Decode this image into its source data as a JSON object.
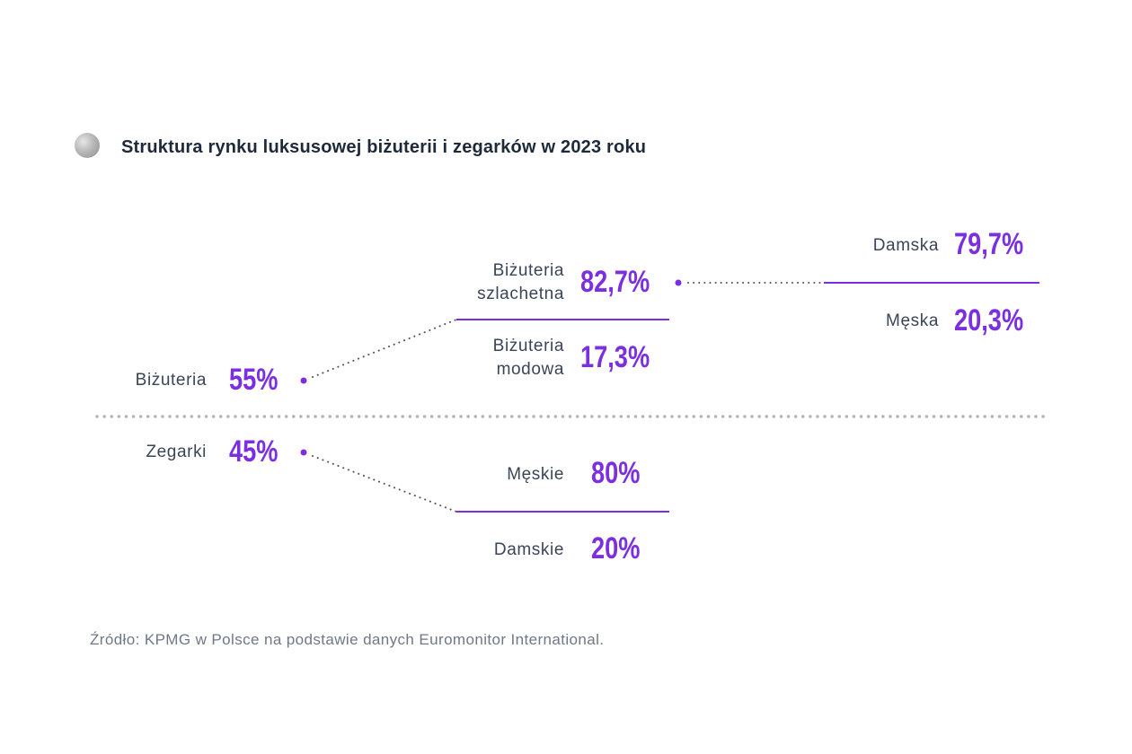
{
  "title": "Struktura rynku luksusowej biżuterii i zegarków w 2023 roku",
  "source": "Źródło: KPMG w Polsce na podstawie danych Euromonitor International.",
  "colors": {
    "accent": "#7b2fe0",
    "text": "#3a4557",
    "title": "#1e2a3a",
    "dots": "#555555"
  },
  "chart_data": {
    "type": "tree",
    "title": "Struktura rynku luksusowej biżuterii i zegarków w 2023 roku",
    "biz": {
      "label": "Biżuteria",
      "value": "55%"
    },
    "zeg": {
      "label": "Zegarki",
      "value": "45%"
    },
    "szl": {
      "label1": "Biżuteria",
      "label2": "szlachetna",
      "value": "82,7%"
    },
    "mod": {
      "label1": "Biżuteria",
      "label2": "modowa",
      "value": "17,3%"
    },
    "damska": {
      "label": "Damska",
      "value": "79,7%"
    },
    "meska": {
      "label": "Męska",
      "value": "20,3%"
    },
    "meskie": {
      "label": "Męskie",
      "value": "80%"
    },
    "damskie": {
      "label": "Damskie",
      "value": "20%"
    },
    "numeric": {
      "Biżuteria": 55,
      "Zegarki": 45,
      "Biżuteria szlachetna": 82.7,
      "Biżuteria modowa": 17.3,
      "Damska": 79.7,
      "Męska": 20.3,
      "Męskie": 80,
      "Damskie": 20
    }
  }
}
